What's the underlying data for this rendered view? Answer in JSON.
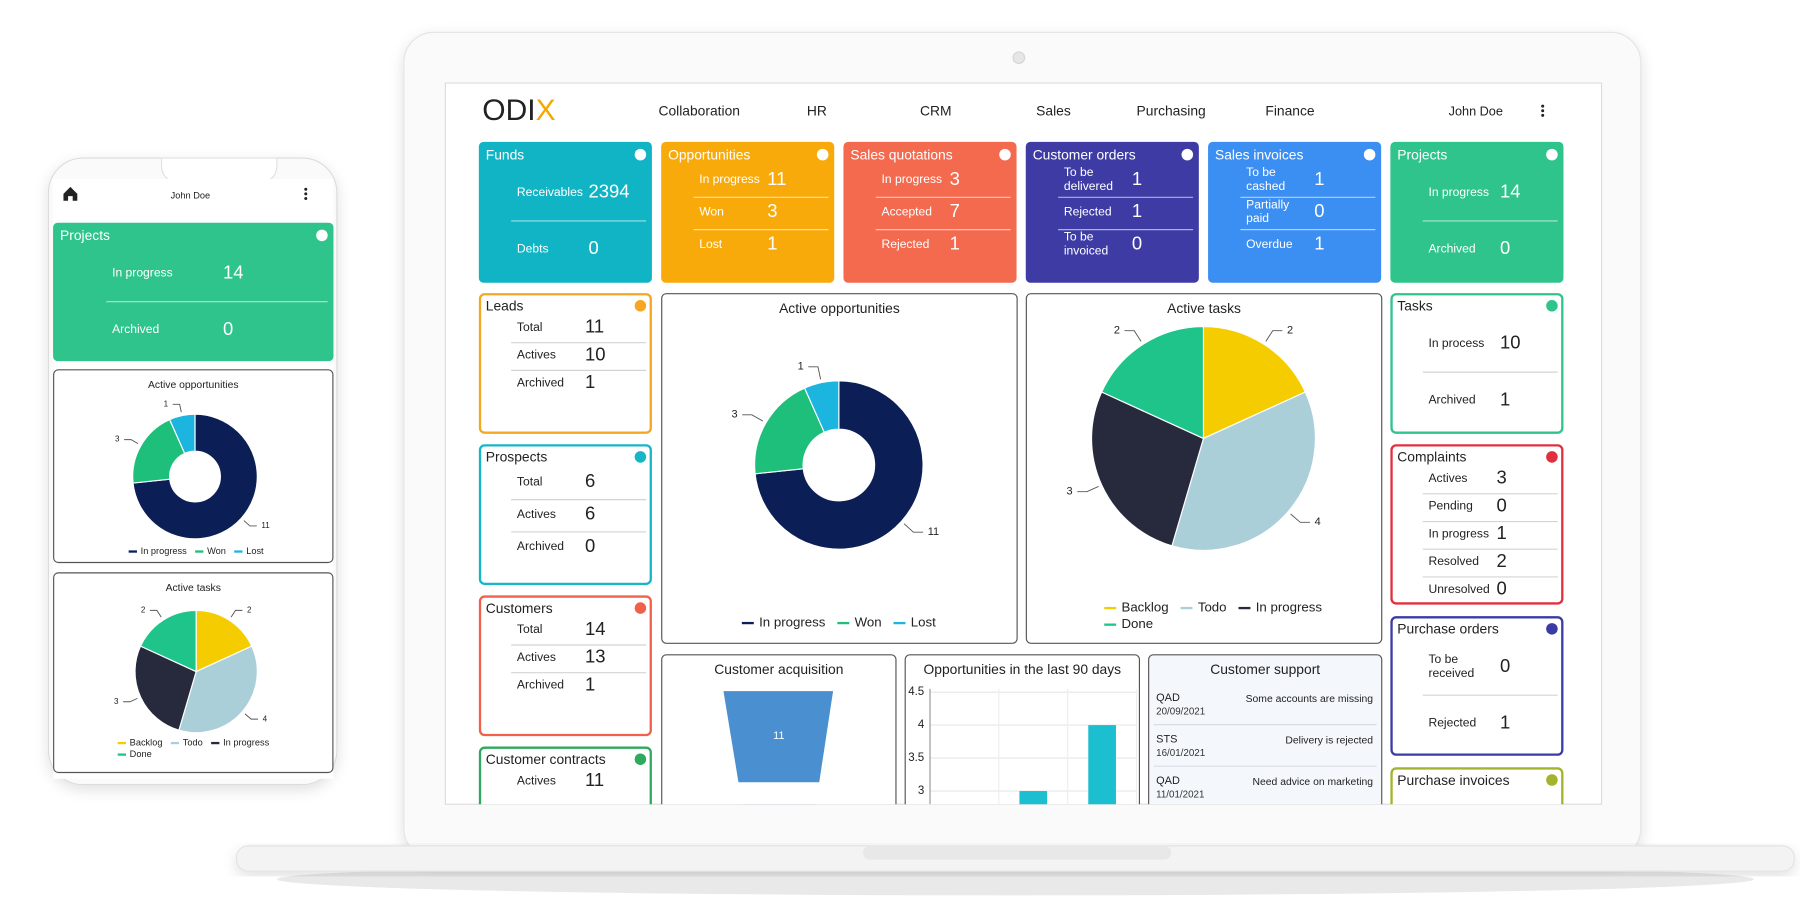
{
  "app": {
    "logo": "ODIX",
    "nav": [
      "Collaboration",
      "HR",
      "CRM",
      "Sales",
      "Purchasing",
      "Finance"
    ],
    "user": "John Doe"
  },
  "tiles": [
    {
      "title": "Funds",
      "color": "#11b4c5",
      "filled": true,
      "rows": [
        {
          "label": "Receivables",
          "value": 2394
        },
        {
          "label": "Debts",
          "value": 0
        }
      ]
    },
    {
      "title": "Opportunities",
      "color": "#f9aa0b",
      "filled": true,
      "rows": [
        {
          "label": "In progress",
          "value": 11
        },
        {
          "label": "Won",
          "value": 3
        },
        {
          "label": "Lost",
          "value": 1
        }
      ]
    },
    {
      "title": "Sales quotations",
      "color": "#f46a4f",
      "filled": true,
      "rows": [
        {
          "label": "In progress",
          "value": 3
        },
        {
          "label": "Accepted",
          "value": 7
        },
        {
          "label": "Rejected",
          "value": 1
        }
      ]
    },
    {
      "title": "Customer orders",
      "color": "#3e3ba5",
      "filled": true,
      "rows": [
        {
          "label": "To be delivered",
          "value": 1
        },
        {
          "label": "Rejected",
          "value": 1
        },
        {
          "label": "To be invoiced",
          "value": 0
        }
      ]
    },
    {
      "title": "Sales invoices",
      "color": "#3b8ef2",
      "filled": true,
      "rows": [
        {
          "label": "To be cashed",
          "value": 1
        },
        {
          "label": "Partially paid",
          "value": 0
        },
        {
          "label": "Overdue",
          "value": 1
        }
      ]
    },
    {
      "title": "Projects",
      "color": "#2ec48b",
      "filled": true,
      "rows": [
        {
          "label": "In progress",
          "value": 14
        },
        {
          "label": "Archived",
          "value": 0
        }
      ]
    },
    {
      "title": "Leads",
      "color": "#f5a623",
      "filled": false,
      "rows": [
        {
          "label": "Total",
          "value": 11
        },
        {
          "label": "Actives",
          "value": 10
        },
        {
          "label": "Archived",
          "value": 1
        }
      ]
    },
    {
      "title": "Prospects",
      "color": "#17b6c7",
      "filled": false,
      "rows": [
        {
          "label": "Total",
          "value": 6
        },
        {
          "label": "Actives",
          "value": 6
        },
        {
          "label": "Archived",
          "value": 0
        }
      ]
    },
    {
      "title": "Customers",
      "color": "#f0614a",
      "filled": false,
      "rows": [
        {
          "label": "Total",
          "value": 14
        },
        {
          "label": "Actives",
          "value": 13
        },
        {
          "label": "Archived",
          "value": 1
        }
      ]
    },
    {
      "title": "Customer contracts",
      "color": "#2eaa5e",
      "filled": false,
      "rows": [
        {
          "label": "Actives",
          "value": 11
        }
      ]
    },
    {
      "title": "Tasks",
      "color": "#2ec48b",
      "filled": false,
      "rows": [
        {
          "label": "In process",
          "value": 10
        },
        {
          "label": "Archived",
          "value": 1
        }
      ]
    },
    {
      "title": "Complaints",
      "color": "#e0303f",
      "filled": false,
      "rows": [
        {
          "label": "Actives",
          "value": 3
        },
        {
          "label": "Pending",
          "value": 0
        },
        {
          "label": "In progress",
          "value": 1
        },
        {
          "label": "Resolved",
          "value": 2
        },
        {
          "label": "Unresolved",
          "value": 0
        }
      ]
    },
    {
      "title": "Purchase orders",
      "color": "#3b3ba5",
      "filled": false,
      "rows": [
        {
          "label": "To be received",
          "value": 0
        },
        {
          "label": "Rejected",
          "value": 1
        }
      ]
    },
    {
      "title": "Purchase invoices",
      "color": "#a4b32c",
      "filled": false,
      "rows": []
    }
  ],
  "charts": {
    "active_opportunities": {
      "type": "donut",
      "title": "Active opportunities",
      "categories": [
        "In progress",
        "Won",
        "Lost"
      ],
      "values": [
        11,
        3,
        1
      ],
      "colors": [
        "#0b1f56",
        "#1dbf7a",
        "#1cb5e0"
      ]
    },
    "active_tasks": {
      "type": "pie",
      "title": "Active tasks",
      "categories": [
        "Backlog",
        "Todo",
        "In progress",
        "Done"
      ],
      "values": [
        2,
        4,
        3,
        2
      ],
      "colors": [
        "#f5cc00",
        "#aacfd9",
        "#272a3d",
        "#1fc48a"
      ]
    },
    "customer_acquisition": {
      "type": "funnel",
      "title": "Customer acquisition",
      "values": [
        11
      ],
      "color": "#4a8fd0"
    },
    "opportunities_90_days": {
      "type": "bar",
      "title": "Opportunities in the last 90 days",
      "values": [
        null,
        3,
        4
      ],
      "color": "#1cbfd0",
      "ylim": [
        2.8,
        4.55
      ],
      "yticks": [
        3,
        3.5,
        4,
        4.5
      ],
      "grid": true
    },
    "customer_support": {
      "title": "Customer support",
      "tickets": [
        {
          "code": "QAD",
          "date": "20/09/2021",
          "message": "Some accounts are missing"
        },
        {
          "code": "STS",
          "date": "16/01/2021",
          "message": "Delivery is rejected"
        },
        {
          "code": "QAD",
          "date": "11/01/2021",
          "message": "Need advice on marketing"
        }
      ]
    }
  }
}
